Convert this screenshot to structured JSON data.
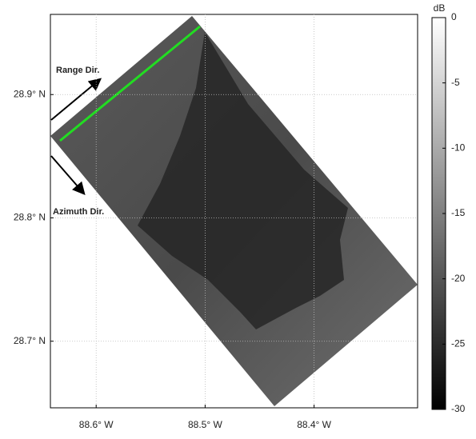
{
  "chart_data": {
    "type": "map",
    "xlim": [
      -88.642,
      -88.305
    ],
    "ylim": [
      28.646,
      28.965
    ],
    "xticks": [
      {
        "value": -88.6,
        "label": "88.6° W"
      },
      {
        "value": -88.5,
        "label": "88.5° W"
      },
      {
        "value": -88.4,
        "label": "88.4° W"
      }
    ],
    "yticks": [
      {
        "value": 28.7,
        "label": "28.7° N"
      },
      {
        "value": 28.8,
        "label": "28.8° N"
      },
      {
        "value": 28.9,
        "label": "28.9° N"
      }
    ],
    "grid": true,
    "annotations": [
      "Range Dir.",
      "Azimuth Dir."
    ],
    "colorbar": {
      "label": "dB",
      "lim": [
        -30,
        0
      ],
      "ticks": [
        0,
        -5,
        -10,
        -15,
        -20,
        -25,
        -30
      ]
    }
  }
}
